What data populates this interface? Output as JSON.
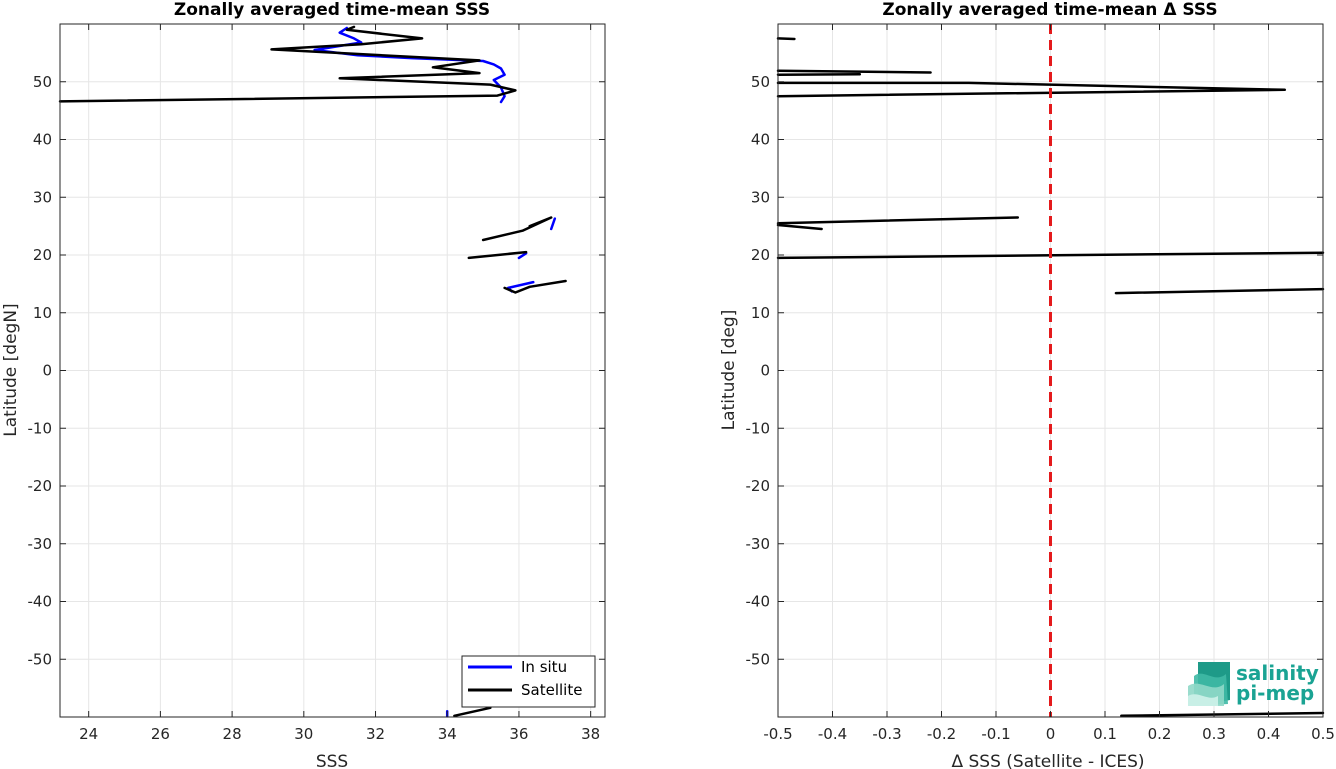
{
  "chart_data": [
    {
      "type": "line",
      "title": "Zonally averaged time-mean SSS",
      "xlabel": "SSS",
      "ylabel": "Latitude [degN]",
      "xlim": [
        23.2,
        38.4
      ],
      "ylim": [
        -60,
        60
      ],
      "grid": true,
      "x_ticks": [
        24,
        26,
        28,
        30,
        32,
        34,
        36,
        38
      ],
      "y_ticks": [
        -50,
        -40,
        -30,
        -20,
        -10,
        0,
        10,
        20,
        30,
        40,
        50
      ],
      "legend_position": "bottom-right",
      "series": [
        {
          "name": "In situ",
          "color": "#0000ff",
          "segments": [
            [
              [
                31.2,
                59.3
              ],
              [
                31.0,
                58.5
              ],
              [
                31.4,
                57.5
              ],
              [
                31.6,
                56.8
              ],
              [
                30.3,
                55.5
              ],
              [
                31.5,
                54.6
              ],
              [
                33.0,
                54.1
              ],
              [
                35.0,
                53.6
              ],
              [
                35.3,
                53.0
              ],
              [
                35.5,
                52.3
              ],
              [
                35.6,
                51.2
              ],
              [
                35.3,
                50.3
              ],
              [
                35.5,
                49.0
              ],
              [
                35.6,
                47.5
              ],
              [
                35.5,
                46.5
              ]
            ],
            [
              [
                37.0,
                26.3
              ],
              [
                36.9,
                24.5
              ]
            ],
            [
              [
                36.2,
                20.3
              ],
              [
                36.0,
                19.5
              ]
            ],
            [
              [
                36.4,
                15.3
              ],
              [
                35.7,
                14.3
              ],
              [
                35.8,
                13.7
              ]
            ],
            [
              [
                34.0,
                -59.0
              ],
              [
                34.0,
                -59.9
              ]
            ]
          ]
        },
        {
          "name": "Satellite",
          "color": "#000000",
          "segments": [
            [
              [
                31.4,
                59.5
              ],
              [
                31.2,
                59.0
              ],
              [
                33.3,
                57.5
              ],
              [
                31.6,
                56.5
              ],
              [
                29.1,
                55.6
              ],
              [
                34.9,
                53.7
              ],
              [
                33.6,
                52.5
              ],
              [
                34.9,
                51.5
              ],
              [
                31.0,
                50.6
              ],
              [
                35.2,
                49.5
              ],
              [
                35.9,
                48.5
              ],
              [
                35.4,
                47.6
              ],
              [
                23.2,
                46.6
              ]
            ],
            [
              [
                36.3,
                25.0
              ],
              [
                36.9,
                26.5
              ],
              [
                36.1,
                24.2
              ],
              [
                35.0,
                22.6
              ]
            ],
            [
              [
                36.2,
                20.5
              ],
              [
                34.6,
                19.5
              ]
            ],
            [
              [
                37.3,
                15.5
              ],
              [
                36.3,
                14.5
              ],
              [
                35.9,
                13.5
              ],
              [
                35.6,
                14.3
              ]
            ],
            [
              [
                35.2,
                -58.4
              ],
              [
                34.2,
                -59.8
              ]
            ]
          ]
        }
      ]
    },
    {
      "type": "line",
      "title": "Zonally averaged time-mean Δ SSS",
      "xlabel": "Δ SSS (Satellite - ICES)",
      "ylabel": "Latitude [deg]",
      "xlim": [
        -0.5,
        0.5
      ],
      "ylim": [
        -60,
        60
      ],
      "grid": true,
      "x_ticks": [
        -0.5,
        -0.4,
        -0.3,
        -0.2,
        -0.1,
        0,
        0.1,
        0.2,
        0.3,
        0.4,
        0.5
      ],
      "y_ticks": [
        -50,
        -40,
        -30,
        -20,
        -10,
        0,
        10,
        20,
        30,
        40,
        50
      ],
      "x_tick_labels": [
        "-0.5",
        "-0.4",
        "-0.3",
        "-0.2",
        "-0.1",
        "0",
        "0.1",
        "0.2",
        "0.3",
        "0.4",
        "0.5"
      ],
      "reference_line": {
        "x": 0,
        "color": "#e41a1c",
        "style": "dashed"
      },
      "series": [
        {
          "color": "#000000",
          "segments": [
            [
              [
                -0.5,
                57.5
              ],
              [
                -0.47,
                57.4
              ]
            ],
            [
              [
                -0.5,
                51.9
              ],
              [
                -0.22,
                51.6
              ]
            ],
            [
              [
                -0.5,
                51.2
              ],
              [
                -0.35,
                51.3
              ]
            ],
            [
              [
                -0.5,
                49.8
              ],
              [
                -0.15,
                49.8
              ],
              [
                0.43,
                48.6
              ],
              [
                -0.5,
                47.5
              ]
            ],
            [
              [
                -0.5,
                25.5
              ],
              [
                -0.06,
                26.5
              ]
            ],
            [
              [
                -0.5,
                25.2
              ],
              [
                -0.42,
                24.5
              ]
            ],
            [
              [
                -0.5,
                19.5
              ],
              [
                0.5,
                20.4
              ]
            ],
            [
              [
                0.12,
                13.4
              ],
              [
                0.5,
                14.1
              ]
            ],
            [
              [
                0.13,
                -59.8
              ],
              [
                0.5,
                -59.3
              ]
            ]
          ]
        }
      ]
    }
  ],
  "legend": {
    "items": [
      "In situ",
      "Satellite"
    ]
  },
  "logo": {
    "line1": "salinity",
    "line2": "pi-mep"
  }
}
